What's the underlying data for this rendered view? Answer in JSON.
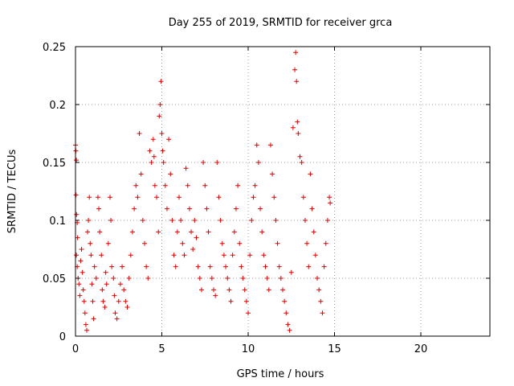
{
  "chart_data": {
    "type": "scatter",
    "title": "Day 255 of 2019, SRMTID for receiver grca",
    "xlabel": "GPS time / hours",
    "ylabel": "SRMTID / TECUs",
    "xlim": [
      0,
      24
    ],
    "ylim": [
      0,
      0.25
    ],
    "grid": true,
    "legend": "none",
    "marker": "plus",
    "series_color": "#e00000",
    "x_ticks": [
      0,
      5,
      10,
      15,
      20
    ],
    "x_tick_labels": [
      "0",
      "5",
      "10",
      "15",
      "20"
    ],
    "y_ticks": [
      0,
      0.05,
      0.1,
      0.15,
      0.2,
      0.25
    ],
    "y_tick_labels": [
      "0",
      "0.05",
      "0.1",
      "0.15",
      "0.2",
      "0.25"
    ],
    "points": [
      [
        0.0,
        0.165
      ],
      [
        0.02,
        0.16
      ],
      [
        0.05,
        0.152
      ],
      [
        0.03,
        0.122
      ],
      [
        0.06,
        0.105
      ],
      [
        0.1,
        0.098
      ],
      [
        0.12,
        0.085
      ],
      [
        0.05,
        0.07
      ],
      [
        0.1,
        0.06
      ],
      [
        0.15,
        0.05
      ],
      [
        0.2,
        0.045
      ],
      [
        0.25,
        0.035
      ],
      [
        0.3,
        0.065
      ],
      [
        0.35,
        0.075
      ],
      [
        0.4,
        0.055
      ],
      [
        0.45,
        0.04
      ],
      [
        0.5,
        0.03
      ],
      [
        0.55,
        0.02
      ],
      [
        0.6,
        0.01
      ],
      [
        0.65,
        0.005
      ],
      [
        0.7,
        0.09
      ],
      [
        0.75,
        0.1
      ],
      [
        0.8,
        0.12
      ],
      [
        0.85,
        0.08
      ],
      [
        0.9,
        0.07
      ],
      [
        0.95,
        0.045
      ],
      [
        1.0,
        0.03
      ],
      [
        1.05,
        0.015
      ],
      [
        1.1,
        0.06
      ],
      [
        1.2,
        0.05
      ],
      [
        1.3,
        0.12
      ],
      [
        1.35,
        0.11
      ],
      [
        1.4,
        0.09
      ],
      [
        1.5,
        0.07
      ],
      [
        1.55,
        0.04
      ],
      [
        1.6,
        0.03
      ],
      [
        1.7,
        0.025
      ],
      [
        1.75,
        0.055
      ],
      [
        1.8,
        0.045
      ],
      [
        1.9,
        0.08
      ],
      [
        2.0,
        0.12
      ],
      [
        2.05,
        0.1
      ],
      [
        2.1,
        0.06
      ],
      [
        2.2,
        0.05
      ],
      [
        2.25,
        0.035
      ],
      [
        2.3,
        0.02
      ],
      [
        2.4,
        0.015
      ],
      [
        2.5,
        0.03
      ],
      [
        2.6,
        0.045
      ],
      [
        2.7,
        0.06
      ],
      [
        2.8,
        0.04
      ],
      [
        2.9,
        0.03
      ],
      [
        3.0,
        0.025
      ],
      [
        3.1,
        0.05
      ],
      [
        3.2,
        0.07
      ],
      [
        3.3,
        0.09
      ],
      [
        3.4,
        0.11
      ],
      [
        3.5,
        0.13
      ],
      [
        3.6,
        0.12
      ],
      [
        3.7,
        0.175
      ],
      [
        3.8,
        0.14
      ],
      [
        3.9,
        0.1
      ],
      [
        4.0,
        0.08
      ],
      [
        4.1,
        0.06
      ],
      [
        4.2,
        0.05
      ],
      [
        4.3,
        0.16
      ],
      [
        4.4,
        0.15
      ],
      [
        4.5,
        0.17
      ],
      [
        4.55,
        0.155
      ],
      [
        4.6,
        0.13
      ],
      [
        4.7,
        0.12
      ],
      [
        4.8,
        0.09
      ],
      [
        4.85,
        0.19
      ],
      [
        4.9,
        0.2
      ],
      [
        4.95,
        0.22
      ],
      [
        5.0,
        0.175
      ],
      [
        5.05,
        0.16
      ],
      [
        5.1,
        0.15
      ],
      [
        5.2,
        0.13
      ],
      [
        5.3,
        0.11
      ],
      [
        5.4,
        0.17
      ],
      [
        5.5,
        0.14
      ],
      [
        5.6,
        0.1
      ],
      [
        5.7,
        0.07
      ],
      [
        5.8,
        0.06
      ],
      [
        5.9,
        0.09
      ],
      [
        6.0,
        0.12
      ],
      [
        6.1,
        0.1
      ],
      [
        6.2,
        0.08
      ],
      [
        6.3,
        0.07
      ],
      [
        6.4,
        0.145
      ],
      [
        6.5,
        0.13
      ],
      [
        6.6,
        0.11
      ],
      [
        6.7,
        0.09
      ],
      [
        6.8,
        0.075
      ],
      [
        6.9,
        0.1
      ],
      [
        7.0,
        0.085
      ],
      [
        7.1,
        0.06
      ],
      [
        7.2,
        0.05
      ],
      [
        7.3,
        0.04
      ],
      [
        7.4,
        0.15
      ],
      [
        7.5,
        0.13
      ],
      [
        7.6,
        0.11
      ],
      [
        7.7,
        0.09
      ],
      [
        7.8,
        0.06
      ],
      [
        7.9,
        0.05
      ],
      [
        8.0,
        0.04
      ],
      [
        8.1,
        0.035
      ],
      [
        8.2,
        0.15
      ],
      [
        8.3,
        0.12
      ],
      [
        8.4,
        0.1
      ],
      [
        8.5,
        0.08
      ],
      [
        8.6,
        0.07
      ],
      [
        8.7,
        0.06
      ],
      [
        8.8,
        0.05
      ],
      [
        8.9,
        0.04
      ],
      [
        9.0,
        0.03
      ],
      [
        9.1,
        0.07
      ],
      [
        9.2,
        0.09
      ],
      [
        9.3,
        0.11
      ],
      [
        9.4,
        0.13
      ],
      [
        9.5,
        0.08
      ],
      [
        9.6,
        0.06
      ],
      [
        9.7,
        0.05
      ],
      [
        9.8,
        0.04
      ],
      [
        9.9,
        0.03
      ],
      [
        10.0,
        0.02
      ],
      [
        10.1,
        0.07
      ],
      [
        10.2,
        0.1
      ],
      [
        10.3,
        0.12
      ],
      [
        10.4,
        0.13
      ],
      [
        10.5,
        0.165
      ],
      [
        10.6,
        0.15
      ],
      [
        10.7,
        0.11
      ],
      [
        10.8,
        0.09
      ],
      [
        10.9,
        0.07
      ],
      [
        11.0,
        0.06
      ],
      [
        11.1,
        0.05
      ],
      [
        11.2,
        0.04
      ],
      [
        11.3,
        0.165
      ],
      [
        11.4,
        0.14
      ],
      [
        11.5,
        0.12
      ],
      [
        11.6,
        0.1
      ],
      [
        11.7,
        0.08
      ],
      [
        11.8,
        0.06
      ],
      [
        11.9,
        0.05
      ],
      [
        12.0,
        0.04
      ],
      [
        12.1,
        0.03
      ],
      [
        12.2,
        0.02
      ],
      [
        12.3,
        0.01
      ],
      [
        12.4,
        0.005
      ],
      [
        12.5,
        0.055
      ],
      [
        12.6,
        0.18
      ],
      [
        12.7,
        0.23
      ],
      [
        12.75,
        0.245
      ],
      [
        12.8,
        0.22
      ],
      [
        12.85,
        0.185
      ],
      [
        12.9,
        0.175
      ],
      [
        13.0,
        0.155
      ],
      [
        13.1,
        0.15
      ],
      [
        13.2,
        0.12
      ],
      [
        13.3,
        0.1
      ],
      [
        13.4,
        0.08
      ],
      [
        13.5,
        0.06
      ],
      [
        13.6,
        0.14
      ],
      [
        13.7,
        0.11
      ],
      [
        13.8,
        0.09
      ],
      [
        13.9,
        0.07
      ],
      [
        14.0,
        0.05
      ],
      [
        14.1,
        0.04
      ],
      [
        14.2,
        0.03
      ],
      [
        14.3,
        0.02
      ],
      [
        14.4,
        0.06
      ],
      [
        14.5,
        0.08
      ],
      [
        14.6,
        0.1
      ],
      [
        14.7,
        0.12
      ],
      [
        14.75,
        0.115
      ]
    ]
  }
}
